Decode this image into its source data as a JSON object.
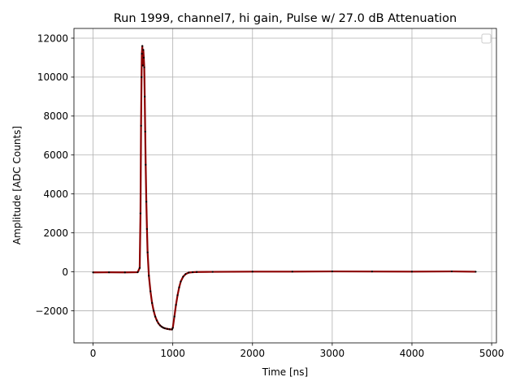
{
  "chart_data": {
    "type": "line",
    "title": "Run 1999, channel7, hi gain, Pulse w/ 27.0 dB Attenuation",
    "xlabel": "Time [ns]",
    "ylabel": "Amplitude [ADC Counts]",
    "xlim": [
      -240,
      5060
    ],
    "ylim": [
      -3650,
      12500
    ],
    "xticks": [
      0,
      1000,
      2000,
      3000,
      4000,
      5000
    ],
    "xtick_labels": [
      "0",
      "1000",
      "2000",
      "3000",
      "4000",
      "5000"
    ],
    "yticks": [
      -2000,
      0,
      2000,
      4000,
      6000,
      8000,
      10000,
      12000
    ],
    "ytick_labels": [
      "−2000",
      "0",
      "2000",
      "4000",
      "6000",
      "8000",
      "10000",
      "12000"
    ],
    "grid": true,
    "legend": "top-right (empty)",
    "series": [
      {
        "color": "#8b0000",
        "x": [
          0,
          200,
          400,
          560,
          585,
          595,
          602,
          608,
          612,
          618,
          624,
          630,
          636,
          642,
          648,
          654,
          660,
          668,
          676,
          684,
          700,
          720,
          740,
          760,
          780,
          800,
          820,
          840,
          860,
          880,
          900,
          930,
          960,
          990,
          1000,
          1020,
          1040,
          1060,
          1080,
          1100,
          1130,
          1160,
          1200,
          1250,
          1300,
          1500,
          2000,
          2500,
          3000,
          3500,
          4000,
          4500,
          4800
        ],
        "y": [
          -30,
          -25,
          -30,
          -20,
          200,
          3000,
          7500,
          10000,
          11200,
          11600,
          10600,
          11400,
          11000,
          10500,
          9000,
          7200,
          5500,
          3600,
          2200,
          1000,
          -200,
          -1000,
          -1600,
          -2000,
          -2300,
          -2500,
          -2650,
          -2750,
          -2820,
          -2870,
          -2900,
          -2930,
          -2950,
          -2960,
          -2880,
          -2300,
          -1700,
          -1200,
          -800,
          -500,
          -250,
          -120,
          -40,
          -20,
          -10,
          0,
          10,
          10,
          20,
          15,
          10,
          20,
          5
        ]
      }
    ]
  }
}
